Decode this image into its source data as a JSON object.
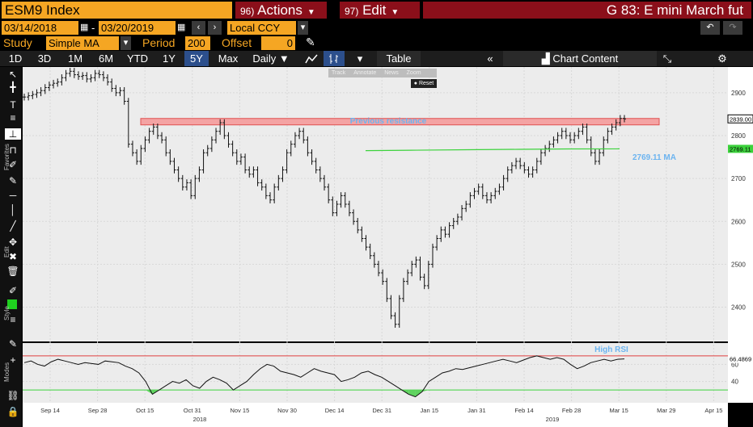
{
  "header": {
    "ticker": "ESM9 Index",
    "actions_num": "96)",
    "actions_label": "Actions",
    "edit_num": "97)",
    "edit_label": "Edit",
    "title": "G 83: E mini March fut"
  },
  "dates": {
    "start": "03/14/2018",
    "dash": "-",
    "end": "03/20/2019",
    "currency": "Local CCY"
  },
  "study": {
    "study_label": "Study",
    "study_value": "Simple MA",
    "period_label": "Period",
    "period_value": "200",
    "offset_label": "Offset",
    "offset_value": "0"
  },
  "toolbar": {
    "ranges": [
      "1D",
      "3D",
      "1M",
      "6M",
      "YTD",
      "1Y",
      "5Y",
      "Max"
    ],
    "active_range": "5Y",
    "interval": "Daily ▼",
    "table": "Table",
    "chart_content": "Chart Content"
  },
  "mini_toolbar": {
    "track": "Track",
    "annotate": "Annotate",
    "news": "News",
    "zoom": "Zoom",
    "reset": "Reset"
  },
  "sidebar": {
    "favorites": "Favorites",
    "edit": "Edit",
    "style": "Style",
    "modes": "Modes"
  },
  "chart_data": [
    {
      "type": "ohlc",
      "annotations": [
        "Previous resistance",
        "2769.11 MA"
      ],
      "y_ticks": [
        2400,
        2500,
        2600,
        2700,
        2800,
        2900
      ],
      "ylim": [
        2320,
        2960
      ],
      "last_price_label": "2839.00",
      "ma_label": "2769.11",
      "resistance_band": [
        2825,
        2840
      ],
      "x_ticks": [
        "Sep 14",
        "Sep 28",
        "Oct 15",
        "Oct 31",
        "Nov 15",
        "Nov 30",
        "Dec 14",
        "Dec 31",
        "Jan 15",
        "Jan 31",
        "Feb 14",
        "Feb 28",
        "Mar 15",
        "Mar 29",
        "Apr 15"
      ],
      "year_labels": [
        "2018",
        "2019"
      ],
      "close_series": [
        2890,
        2893,
        2896,
        2900,
        2905,
        2912,
        2918,
        2922,
        2925,
        2935,
        2945,
        2950,
        2942,
        2938,
        2940,
        2932,
        2935,
        2945,
        2942,
        2935,
        2925,
        2910,
        2900,
        2905,
        2880,
        2780,
        2760,
        2740,
        2770,
        2790,
        2810,
        2820,
        2800,
        2790,
        2760,
        2740,
        2720,
        2700,
        2680,
        2690,
        2660,
        2700,
        2720,
        2760,
        2770,
        2790,
        2810,
        2830,
        2800,
        2780,
        2760,
        2740,
        2750,
        2720,
        2710,
        2720,
        2690,
        2680,
        2660,
        2650,
        2680,
        2700,
        2720,
        2760,
        2780,
        2800,
        2810,
        2790,
        2760,
        2740,
        2720,
        2700,
        2680,
        2650,
        2620,
        2640,
        2660,
        2640,
        2620,
        2600,
        2580,
        2560,
        2540,
        2520,
        2500,
        2480,
        2460,
        2420,
        2380,
        2360,
        2420,
        2460,
        2480,
        2500,
        2510,
        2470,
        2450,
        2500,
        2540,
        2560,
        2580,
        2570,
        2590,
        2600,
        2610,
        2630,
        2640,
        2660,
        2670,
        2680,
        2660,
        2650,
        2660,
        2670,
        2680,
        2700,
        2720,
        2730,
        2740,
        2730,
        2720,
        2710,
        2720,
        2740,
        2760,
        2770,
        2780,
        2790,
        2800,
        2810,
        2800,
        2790,
        2800,
        2810,
        2820,
        2790,
        2760,
        2740,
        2760,
        2790,
        2810,
        2820,
        2830,
        2840,
        2839
      ],
      "ma_series": [
        2765,
        2766,
        2767,
        2768,
        2769,
        2769.11
      ]
    },
    {
      "type": "line",
      "name": "RSI",
      "annotations": [
        "High RSI"
      ],
      "y_ticks": [
        40,
        60
      ],
      "ylim": [
        15,
        85
      ],
      "overbought": 70,
      "oversold": 30,
      "last_label": "66.4869",
      "values": [
        62,
        64,
        60,
        58,
        63,
        66,
        64,
        62,
        60,
        62,
        61,
        60,
        64,
        63,
        62,
        58,
        55,
        50,
        40,
        25,
        30,
        35,
        40,
        38,
        42,
        35,
        32,
        40,
        45,
        42,
        38,
        30,
        35,
        40,
        48,
        55,
        60,
        58,
        52,
        50,
        48,
        45,
        50,
        55,
        52,
        50,
        48,
        40,
        42,
        45,
        50,
        52,
        48,
        45,
        40,
        35,
        30,
        25,
        22,
        28,
        40,
        45,
        50,
        52,
        55,
        54,
        56,
        58,
        60,
        62,
        64,
        66,
        64,
        62,
        65,
        68,
        70,
        68,
        66,
        68,
        66,
        60,
        55,
        58,
        62,
        64,
        66,
        64,
        66,
        66.4869
      ]
    }
  ]
}
